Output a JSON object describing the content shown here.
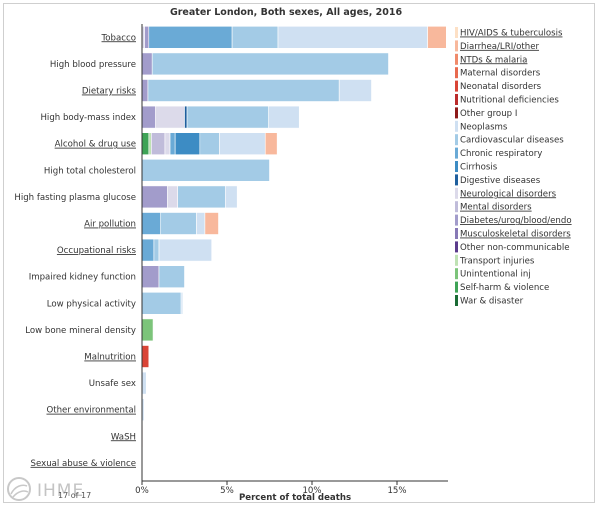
{
  "chart_data": {
    "type": "bar",
    "orientation": "horizontal",
    "stacked": true,
    "title": "Greater London, Both sexes, All ages, 2016",
    "xlabel": "Percent of total deaths",
    "xlim": [
      0,
      18
    ],
    "xticks": [
      {
        "value": 0,
        "label": "0%"
      },
      {
        "value": 5,
        "label": "5%"
      },
      {
        "value": 10,
        "label": "10%"
      },
      {
        "value": 15,
        "label": "15%"
      }
    ],
    "categories": [
      {
        "label": "Tobacco",
        "underlined": true
      },
      {
        "label": "High blood pressure",
        "underlined": false
      },
      {
        "label": "Dietary risks",
        "underlined": true
      },
      {
        "label": "High body-mass index",
        "underlined": false
      },
      {
        "label": "Alcohol & drug use",
        "underlined": true
      },
      {
        "label": "High total cholesterol",
        "underlined": false
      },
      {
        "label": "High fasting plasma glucose",
        "underlined": false
      },
      {
        "label": "Air pollution",
        "underlined": true
      },
      {
        "label": "Occupational risks",
        "underlined": true
      },
      {
        "label": "Impaired kidney function",
        "underlined": false
      },
      {
        "label": "Low physical activity",
        "underlined": false
      },
      {
        "label": "Low bone mineral density",
        "underlined": false
      },
      {
        "label": "Malnutrition",
        "underlined": true
      },
      {
        "label": "Unsafe sex",
        "underlined": false
      },
      {
        "label": "Other environmental",
        "underlined": true
      },
      {
        "label": "WaSH",
        "underlined": true
      },
      {
        "label": "Sexual abuse & violence",
        "underlined": true
      }
    ],
    "legend_position": "right",
    "series": [
      {
        "name": "HIV/AIDS & tuberculosis",
        "color": "#fde0c5",
        "underlined": true
      },
      {
        "name": "Diarrhea/LRI/other",
        "color": "#f8b89c",
        "underlined": true
      },
      {
        "name": "NTDs & malaria",
        "color": "#f08a6a",
        "underlined": true
      },
      {
        "name": "Maternal disorders",
        "color": "#e86a4f",
        "underlined": false
      },
      {
        "name": "Neonatal disorders",
        "color": "#d94436",
        "underlined": false
      },
      {
        "name": "Nutritional deficiencies",
        "color": "#bb2b2b",
        "underlined": false
      },
      {
        "name": "Other group I",
        "color": "#8e1a1a",
        "underlined": false
      },
      {
        "name": "Neoplasms",
        "color": "#cfe0f2",
        "underlined": false
      },
      {
        "name": "Cardiovascular diseases",
        "color": "#a3cbe6",
        "underlined": false
      },
      {
        "name": "Chronic respiratory",
        "color": "#6aaad6",
        "underlined": false
      },
      {
        "name": "Cirrhosis",
        "color": "#3d8cc4",
        "underlined": false
      },
      {
        "name": "Digestive diseases",
        "color": "#1f5f9e",
        "underlined": false
      },
      {
        "name": "Neurological disorders",
        "color": "#dcdaea",
        "underlined": true
      },
      {
        "name": "Mental disorders",
        "color": "#c0bcda",
        "underlined": true
      },
      {
        "name": "Diabetes/urog/blood/endo",
        "color": "#a29ccb",
        "underlined": true
      },
      {
        "name": "Musculoskeletal disorders",
        "color": "#8779b6",
        "underlined": true
      },
      {
        "name": "Other non-communicable",
        "color": "#5b3b8c",
        "underlined": false
      },
      {
        "name": "Transport injuries",
        "color": "#bfe2b4",
        "underlined": false
      },
      {
        "name": "Unintentional inj",
        "color": "#7cc47a",
        "underlined": false
      },
      {
        "name": "Self-harm & violence",
        "color": "#3ea356",
        "underlined": false
      },
      {
        "name": "War & disaster",
        "color": "#1a6b35",
        "underlined": false
      }
    ],
    "bars": [
      [
        {
          "series": "Neurological disorders",
          "value": 0.15
        },
        {
          "series": "Diabetes/urog/blood/endo",
          "value": 0.25
        },
        {
          "series": "Chronic respiratory",
          "value": 4.9
        },
        {
          "series": "Cardiovascular diseases",
          "value": 2.7
        },
        {
          "series": "Neoplasms",
          "value": 8.8
        },
        {
          "series": "Diarrhea/LRI/other",
          "value": 1.1
        }
      ],
      [
        {
          "series": "Diabetes/urog/blood/endo",
          "value": 0.6
        },
        {
          "series": "Cardiovascular diseases",
          "value": 13.9
        }
      ],
      [
        {
          "series": "Diabetes/urog/blood/endo",
          "value": 0.35
        },
        {
          "series": "Cardiovascular diseases",
          "value": 11.25
        },
        {
          "series": "Neoplasms",
          "value": 1.9
        }
      ],
      [
        {
          "series": "Diabetes/urog/blood/endo",
          "value": 0.8
        },
        {
          "series": "Neurological disorders",
          "value": 1.7
        },
        {
          "series": "Digestive diseases",
          "value": 0.15
        },
        {
          "series": "Cardiovascular diseases",
          "value": 4.8
        },
        {
          "series": "Neoplasms",
          "value": 1.8
        }
      ],
      [
        {
          "series": "Self-harm & violence",
          "value": 0.4
        },
        {
          "series": "Transport injuries",
          "value": 0.15
        },
        {
          "series": "Mental disorders",
          "value": 0.8
        },
        {
          "series": "Neurological disorders",
          "value": 0.3
        },
        {
          "series": "Chronic respiratory",
          "value": 0.3
        },
        {
          "series": "Cirrhosis",
          "value": 1.45
        },
        {
          "series": "Cardiovascular diseases",
          "value": 1.15
        },
        {
          "series": "Neoplasms",
          "value": 2.7
        },
        {
          "series": "Diarrhea/LRI/other",
          "value": 0.7
        }
      ],
      [
        {
          "series": "Cardiovascular diseases",
          "value": 7.5
        }
      ],
      [
        {
          "series": "Diabetes/urog/blood/endo",
          "value": 1.5
        },
        {
          "series": "Neurological disorders",
          "value": 0.6
        },
        {
          "series": "Cardiovascular diseases",
          "value": 2.8
        },
        {
          "series": "Neoplasms",
          "value": 0.7
        }
      ],
      [
        {
          "series": "Chronic respiratory",
          "value": 1.1
        },
        {
          "series": "Cardiovascular diseases",
          "value": 2.1
        },
        {
          "series": "Neoplasms",
          "value": 0.5
        },
        {
          "series": "Diarrhea/LRI/other",
          "value": 0.8
        }
      ],
      [
        {
          "series": "Chronic respiratory",
          "value": 0.7
        },
        {
          "series": "Cardiovascular diseases",
          "value": 0.3
        },
        {
          "series": "Neoplasms",
          "value": 3.1
        }
      ],
      [
        {
          "series": "Diabetes/urog/blood/endo",
          "value": 1.0
        },
        {
          "series": "Cardiovascular diseases",
          "value": 1.5
        }
      ],
      [
        {
          "series": "Cardiovascular diseases",
          "value": 2.3
        },
        {
          "series": "Neoplasms",
          "value": 0.1
        }
      ],
      [
        {
          "series": "Unintentional inj",
          "value": 0.65
        }
      ],
      [
        {
          "series": "Neonatal disorders",
          "value": 0.4
        }
      ],
      [
        {
          "series": "Neoplasms",
          "value": 0.25
        }
      ],
      [
        {
          "series": "Neoplasms",
          "value": 0.12
        }
      ],
      [
        {
          "series": "Diarrhea/LRI/other",
          "value": 0.05
        }
      ],
      []
    ]
  },
  "footer": {
    "page_indicator": "17 of 17",
    "logo_text": "IHME"
  }
}
